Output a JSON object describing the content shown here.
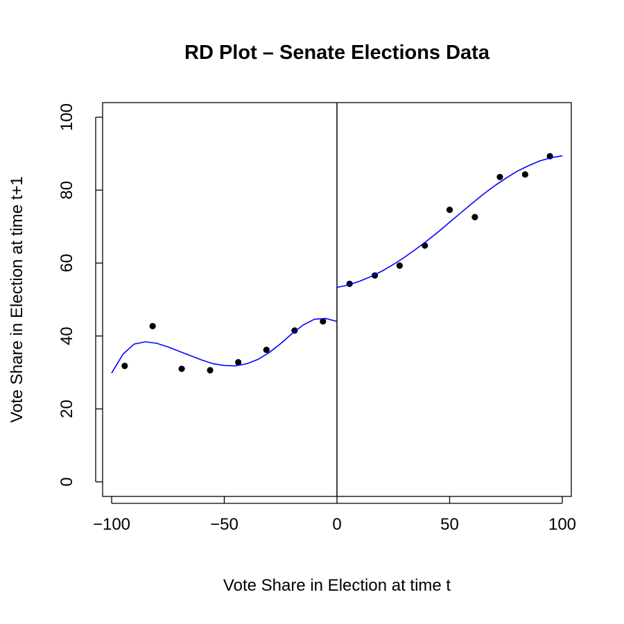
{
  "chart_data": {
    "type": "scatter",
    "title": "RD Plot – Senate Elections Data",
    "xlabel": "Vote Share in Election at time t",
    "ylabel": "Vote Share in Election at time t+1",
    "xlim": [
      -104,
      104
    ],
    "ylim": [
      -4,
      104
    ],
    "x_ticks": [
      -100,
      -50,
      0,
      50,
      100
    ],
    "x_tick_labels": [
      "−100",
      "−50",
      "0",
      "50",
      "100"
    ],
    "y_ticks": [
      0,
      20,
      40,
      60,
      80,
      100
    ],
    "y_tick_labels": [
      "0",
      "20",
      "40",
      "60",
      "80",
      "100"
    ],
    "cutoff": 0,
    "grid": false,
    "series": [
      {
        "role": "bin-means",
        "color": "#000000",
        "x": [
          -94.2,
          -81.8,
          -68.9,
          -56.3,
          -43.8,
          -31.3,
          -18.8,
          -6.2,
          5.6,
          16.8,
          27.8,
          39.0,
          50.0,
          61.2,
          72.3,
          83.5,
          94.5
        ],
        "y": [
          31.8,
          42.7,
          31.0,
          30.6,
          32.8,
          36.2,
          41.5,
          44.0,
          54.3,
          56.6,
          59.3,
          64.8,
          74.6,
          72.6,
          83.6,
          84.3,
          89.3
        ]
      },
      {
        "role": "polynomial-fit-left",
        "color": "#0000ff",
        "x": [
          -100,
          -95,
          -90,
          -85,
          -80,
          -75,
          -70,
          -65,
          -60,
          -55,
          -50,
          -45,
          -40,
          -35,
          -30,
          -25,
          -20,
          -15,
          -10,
          -5,
          0
        ],
        "y": [
          29.8,
          35.0,
          37.8,
          38.4,
          38.0,
          37.0,
          35.8,
          34.6,
          33.4,
          32.4,
          31.9,
          31.8,
          32.4,
          33.6,
          35.5,
          37.9,
          40.6,
          43.0,
          44.6,
          44.8,
          44.0
        ]
      },
      {
        "role": "polynomial-fit-right",
        "color": "#0000ff",
        "x": [
          0,
          5,
          10,
          15,
          20,
          25,
          30,
          35,
          40,
          45,
          50,
          55,
          60,
          65,
          70,
          75,
          80,
          85,
          90,
          95,
          100
        ],
        "y": [
          53.3,
          54.0,
          55.0,
          56.3,
          57.8,
          59.6,
          61.6,
          63.8,
          66.1,
          68.6,
          71.2,
          73.8,
          76.4,
          78.9,
          81.2,
          83.3,
          85.2,
          86.7,
          88.0,
          88.9,
          89.4
        ]
      }
    ]
  }
}
